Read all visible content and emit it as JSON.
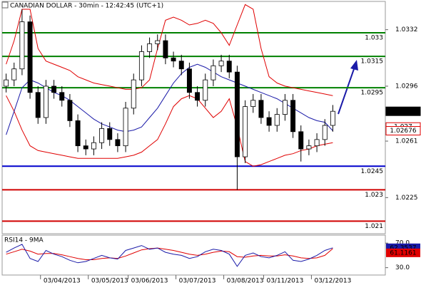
{
  "chart_data": {
    "type": "candlestick",
    "title": "CANADIAN DOLLAR - 30min - 12:42:45 (UTC+1)",
    "categories": [
      null,
      null,
      null,
      null,
      null,
      null,
      null,
      "03/04/2013",
      null,
      null,
      null,
      null,
      null,
      "03/05/2013",
      null,
      null,
      null,
      null,
      "03/06/2013",
      null,
      null,
      null,
      null,
      null,
      "03/07/2013",
      null,
      null,
      null,
      null,
      null,
      "03/08/2013",
      null,
      null,
      null,
      null,
      "03/11/2013",
      null,
      null,
      null,
      null,
      null,
      "03/12/2013"
    ],
    "open": [
      1.0296,
      1.03,
      1.0307,
      1.0337,
      1.0292,
      1.0276,
      1.0296,
      1.0292,
      1.0287,
      1.0274,
      1.0258,
      1.0256,
      1.026,
      1.0269,
      1.0262,
      1.0258,
      1.0282,
      1.03,
      1.0318,
      1.0323,
      1.0325,
      1.0314,
      1.0312,
      1.0307,
      1.0292,
      1.0287,
      1.03,
      1.0309,
      1.0312,
      1.0305,
      1.0251,
      1.0283,
      1.0287,
      1.0276,
      1.0271,
      1.0278,
      1.0287,
      1.0267,
      1.0256,
      1.0258,
      1.0262,
      1.0271
    ],
    "high": [
      1.0304,
      1.0311,
      1.0345,
      1.0341,
      1.0296,
      1.03,
      1.03,
      1.0296,
      1.0291,
      1.0278,
      1.0262,
      1.0264,
      1.0273,
      1.0273,
      1.0266,
      1.0286,
      1.0304,
      1.0322,
      1.0327,
      1.0329,
      1.0329,
      1.0318,
      1.0316,
      1.0311,
      1.0296,
      1.0304,
      1.0313,
      1.0316,
      1.0316,
      1.0309,
      1.0287,
      1.0291,
      1.0291,
      1.028,
      1.0282,
      1.0291,
      1.0291,
      1.0271,
      1.0262,
      1.0266,
      1.0275,
      1.0284
    ],
    "low": [
      1.0292,
      1.0296,
      1.0303,
      1.0288,
      1.0272,
      1.0272,
      1.0288,
      1.0283,
      1.027,
      1.0254,
      1.0252,
      1.0252,
      1.0256,
      1.0258,
      1.0254,
      1.0254,
      1.0278,
      1.0296,
      1.0314,
      1.0319,
      1.031,
      1.0308,
      1.0303,
      1.0288,
      1.0283,
      1.0283,
      1.0296,
      1.0305,
      1.0301,
      1.023,
      1.0247,
      1.0279,
      1.0272,
      1.0267,
      1.0267,
      1.0274,
      1.0263,
      1.0248,
      1.0252,
      1.0254,
      1.0258,
      1.0267
    ],
    "close": [
      1.03,
      1.0307,
      1.0337,
      1.0292,
      1.0276,
      1.0296,
      1.0292,
      1.0287,
      1.0274,
      1.0258,
      1.0256,
      1.026,
      1.0269,
      1.0262,
      1.0258,
      1.0282,
      1.03,
      1.0318,
      1.0323,
      1.0325,
      1.0314,
      1.0312,
      1.0307,
      1.0292,
      1.0287,
      1.03,
      1.0309,
      1.0312,
      1.0305,
      1.0251,
      1.0283,
      1.0287,
      1.0276,
      1.0271,
      1.0278,
      1.0287,
      1.0267,
      1.0256,
      1.0258,
      1.0262,
      1.0271,
      1.028
    ],
    "upper_band": {
      "color": "#e00000",
      "values": [
        1.031,
        1.0325,
        1.0345,
        1.0345,
        1.032,
        1.0312,
        1.031,
        1.0308,
        1.0306,
        1.0302,
        1.03,
        1.0298,
        1.0297,
        1.0296,
        1.0295,
        1.0294,
        1.0294,
        1.0295,
        1.03,
        1.032,
        1.0338,
        1.034,
        1.0338,
        1.0335,
        1.0336,
        1.0338,
        1.0336,
        1.033,
        1.0322,
        1.0335,
        1.0348,
        1.0345,
        1.032,
        1.0302,
        1.0298,
        1.0296,
        1.0295,
        1.0294,
        1.0293,
        1.0292,
        1.0291,
        1.029
      ]
    },
    "lower_band": {
      "color": "#e00000",
      "values": [
        1.029,
        1.028,
        1.0268,
        1.0258,
        1.0255,
        1.0254,
        1.0253,
        1.0252,
        1.0251,
        1.025,
        1.025,
        1.025,
        1.025,
        1.025,
        1.025,
        1.0251,
        1.0252,
        1.0254,
        1.0258,
        1.0262,
        1.0272,
        1.0283,
        1.0288,
        1.029,
        1.0288,
        1.0282,
        1.0276,
        1.028,
        1.0288,
        1.027,
        1.0248,
        1.0245,
        1.0246,
        1.0248,
        1.025,
        1.0252,
        1.0253,
        1.0255,
        1.0256,
        1.0258,
        1.0259,
        1.026
      ]
    },
    "ma": {
      "color": "#1a1aa8",
      "values": [
        1.0265,
        1.028,
        1.0295,
        1.03,
        1.0298,
        1.0295,
        1.0292,
        1.029,
        1.0287,
        1.0283,
        1.0279,
        1.0275,
        1.0272,
        1.027,
        1.0268,
        1.0267,
        1.0268,
        1.027,
        1.0276,
        1.0282,
        1.029,
        1.0298,
        1.0304,
        1.0308,
        1.031,
        1.0308,
        1.0305,
        1.0302,
        1.03,
        1.0298,
        1.0296,
        1.0294,
        1.0292,
        1.029,
        1.0288,
        1.0285,
        1.0282,
        1.0279,
        1.0276,
        1.0274,
        1.0273,
        1.02676
      ]
    },
    "price_tags": [
      {
        "value": 1.027,
        "color": "#e00000"
      }
    ],
    "ylim": [
      1.0202,
      1.035
    ],
    "yticks": [
      1.0332,
      1.0296,
      1.0261,
      1.0225
    ],
    "levels": [
      {
        "value": 1.033,
        "color": "#008000"
      },
      {
        "value": 1.0315,
        "color": "#008000"
      },
      {
        "value": 1.0295,
        "color": "#008000"
      },
      {
        "value": 1.0245,
        "color": "#0000cc"
      },
      {
        "value": 1.023,
        "color": "#d00000"
      },
      {
        "value": 1.021,
        "color": "#d00000"
      }
    ],
    "rsi_title": "RSI14 - 9MA",
    "rsi": {
      "color": "#1a1aa8",
      "values": [
        55,
        62,
        68,
        45,
        40,
        58,
        52,
        48,
        42,
        38,
        40,
        45,
        50,
        46,
        44,
        58,
        62,
        66,
        60,
        62,
        55,
        52,
        50,
        45,
        48,
        56,
        60,
        58,
        52,
        32,
        50,
        54,
        48,
        46,
        50,
        56,
        42,
        40,
        44,
        50,
        58,
        62.3537
      ]
    },
    "rsi_ma": {
      "color": "#e00000",
      "values": [
        52,
        56,
        60,
        57,
        52,
        53,
        53,
        51,
        48,
        45,
        43,
        43,
        45,
        46,
        45,
        49,
        54,
        59,
        61,
        62,
        60,
        58,
        55,
        52,
        50,
        52,
        55,
        57,
        56,
        48,
        47,
        49,
        50,
        49,
        49,
        51,
        49,
        46,
        45,
        46,
        50,
        61.1161
      ]
    },
    "rsi_ylim": [
      18,
      83
    ],
    "rsi_yticks": [
      {
        "value": 70,
        "label": "70.0"
      },
      {
        "value": 30,
        "label": "30.0"
      }
    ]
  }
}
